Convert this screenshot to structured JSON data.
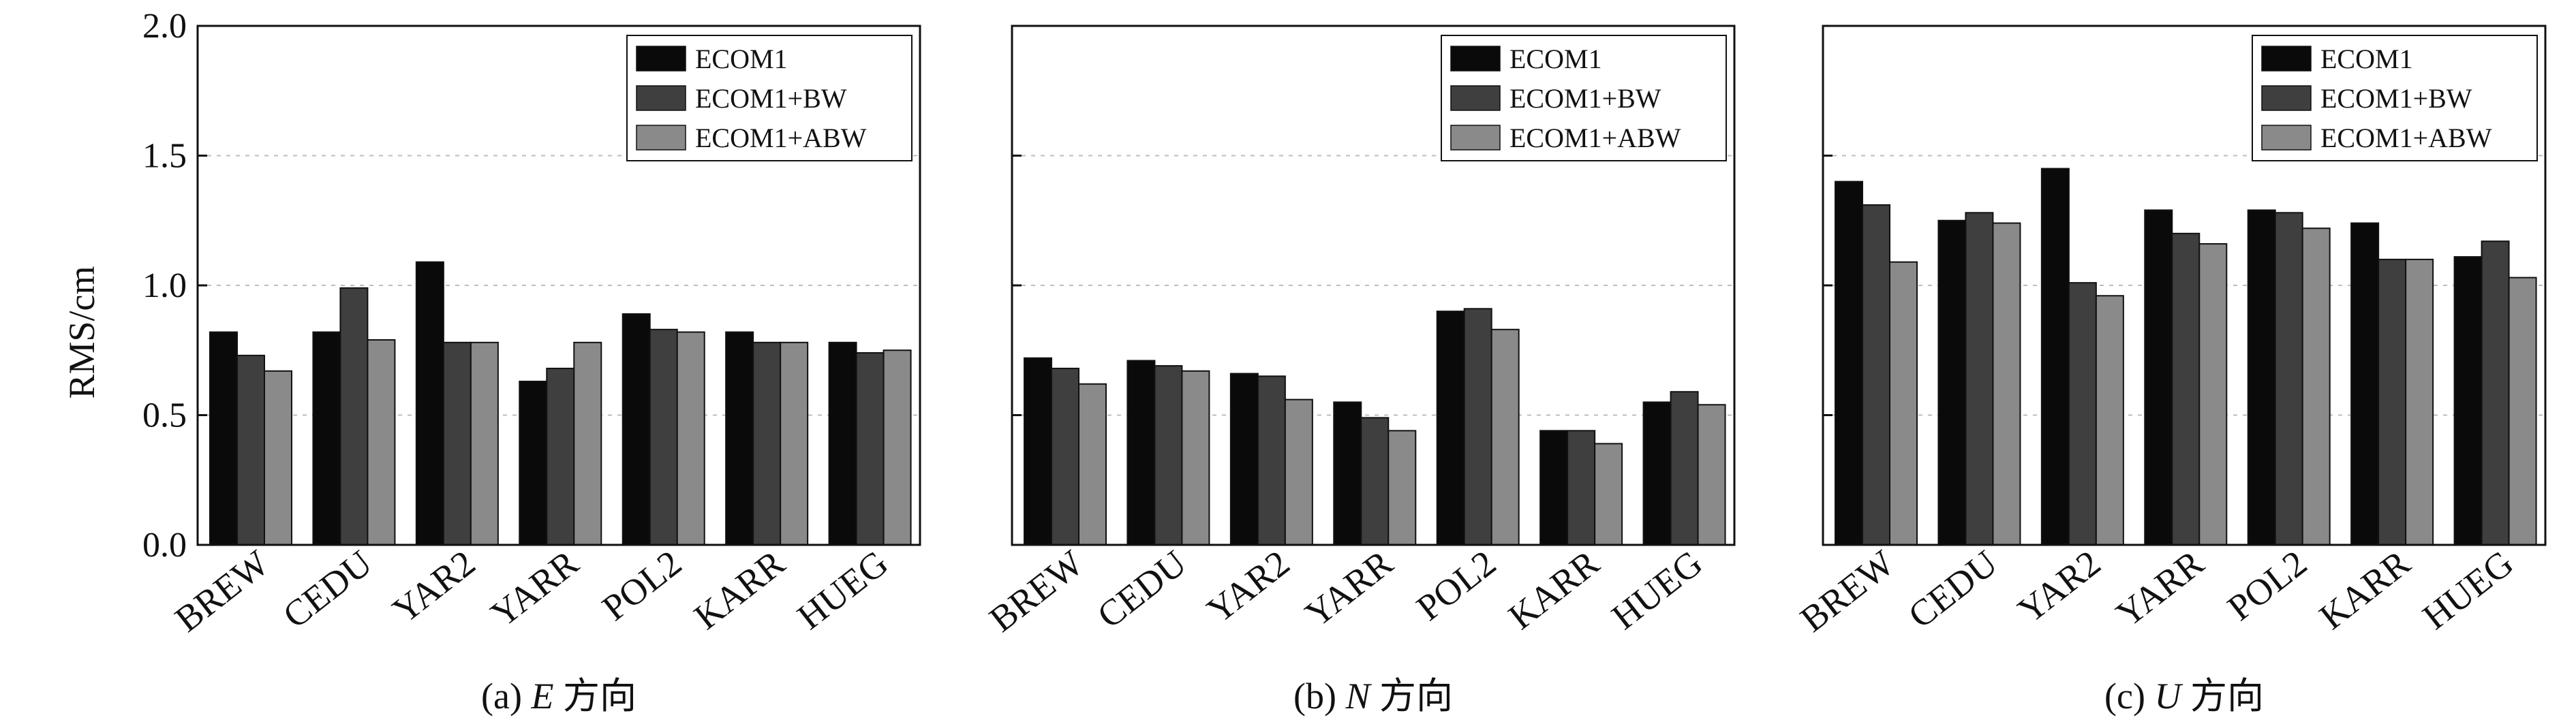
{
  "figure": {
    "ylabel": "RMS/cm",
    "y_ticks": [
      "2.0",
      "1.5",
      "1.0",
      "0.5",
      "0.0"
    ]
  },
  "colors": {
    "ECOM1": "#0a0a0a",
    "ECOM1+BW": "#3f3f3f",
    "ECOM1+ABW": "#8a8a8a"
  },
  "chart_data": [
    {
      "type": "bar",
      "caption_prefix": "(a) ",
      "caption_var": "E",
      "caption_suffix": " 方向",
      "categories": [
        "BREW",
        "CEDU",
        "YAR2",
        "YARR",
        "POL2",
        "KARR",
        "HUEG"
      ],
      "series": [
        {
          "name": "ECOM1",
          "values": [
            0.82,
            0.82,
            1.09,
            0.63,
            0.89,
            0.82,
            0.78
          ]
        },
        {
          "name": "ECOM1+BW",
          "values": [
            0.73,
            0.99,
            0.78,
            0.68,
            0.83,
            0.78,
            0.74
          ]
        },
        {
          "name": "ECOM1+ABW",
          "values": [
            0.67,
            0.79,
            0.78,
            0.78,
            0.82,
            0.78,
            0.75
          ]
        }
      ],
      "ylabel": "RMS/cm",
      "ylim": [
        0,
        2.0
      ],
      "grid": true,
      "legend": "top-right"
    },
    {
      "type": "bar",
      "caption_prefix": "(b) ",
      "caption_var": "N",
      "caption_suffix": " 方向",
      "categories": [
        "BREW",
        "CEDU",
        "YAR2",
        "YARR",
        "POL2",
        "KARR",
        "HUEG"
      ],
      "series": [
        {
          "name": "ECOM1",
          "values": [
            0.72,
            0.71,
            0.66,
            0.55,
            0.9,
            0.44,
            0.55
          ]
        },
        {
          "name": "ECOM1+BW",
          "values": [
            0.68,
            0.69,
            0.65,
            0.49,
            0.91,
            0.44,
            0.59
          ]
        },
        {
          "name": "ECOM1+ABW",
          "values": [
            0.62,
            0.67,
            0.56,
            0.44,
            0.83,
            0.39,
            0.54
          ]
        }
      ],
      "ylim": [
        0,
        2.0
      ],
      "grid": true,
      "legend": "top-right"
    },
    {
      "type": "bar",
      "caption_prefix": "(c) ",
      "caption_var": "U",
      "caption_suffix": " 方向",
      "categories": [
        "BREW",
        "CEDU",
        "YAR2",
        "YARR",
        "POL2",
        "KARR",
        "HUEG"
      ],
      "series": [
        {
          "name": "ECOM1",
          "values": [
            1.4,
            1.25,
            1.45,
            1.29,
            1.29,
            1.24,
            1.11
          ]
        },
        {
          "name": "ECOM1+BW",
          "values": [
            1.31,
            1.28,
            1.01,
            1.2,
            1.28,
            1.1,
            1.17
          ]
        },
        {
          "name": "ECOM1+ABW",
          "values": [
            1.09,
            1.24,
            0.96,
            1.16,
            1.22,
            1.1,
            1.03
          ]
        }
      ],
      "ylim": [
        0,
        2.0
      ],
      "grid": true,
      "legend": "top-right"
    }
  ]
}
